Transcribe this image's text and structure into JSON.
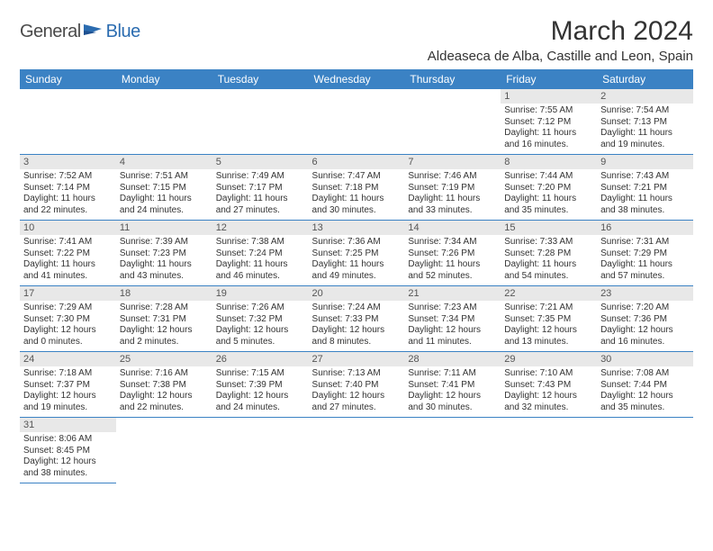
{
  "logo": {
    "general": "General",
    "blue": "Blue"
  },
  "title": "March 2024",
  "location": "Aldeaseca de Alba, Castille and Leon, Spain",
  "colors": {
    "header_bg": "#3b82c4",
    "header_text": "#ffffff",
    "daynum_bg": "#e8e8e8",
    "text": "#333333",
    "border": "#3b82c4",
    "logo_blue": "#2b6cb0",
    "logo_gray": "#4a4a4a"
  },
  "weekdays": [
    "Sunday",
    "Monday",
    "Tuesday",
    "Wednesday",
    "Thursday",
    "Friday",
    "Saturday"
  ],
  "weeks": [
    [
      null,
      null,
      null,
      null,
      null,
      {
        "d": "1",
        "sr": "Sunrise: 7:55 AM",
        "ss": "Sunset: 7:12 PM",
        "dl1": "Daylight: 11 hours",
        "dl2": "and 16 minutes."
      },
      {
        "d": "2",
        "sr": "Sunrise: 7:54 AM",
        "ss": "Sunset: 7:13 PM",
        "dl1": "Daylight: 11 hours",
        "dl2": "and 19 minutes."
      }
    ],
    [
      {
        "d": "3",
        "sr": "Sunrise: 7:52 AM",
        "ss": "Sunset: 7:14 PM",
        "dl1": "Daylight: 11 hours",
        "dl2": "and 22 minutes."
      },
      {
        "d": "4",
        "sr": "Sunrise: 7:51 AM",
        "ss": "Sunset: 7:15 PM",
        "dl1": "Daylight: 11 hours",
        "dl2": "and 24 minutes."
      },
      {
        "d": "5",
        "sr": "Sunrise: 7:49 AM",
        "ss": "Sunset: 7:17 PM",
        "dl1": "Daylight: 11 hours",
        "dl2": "and 27 minutes."
      },
      {
        "d": "6",
        "sr": "Sunrise: 7:47 AM",
        "ss": "Sunset: 7:18 PM",
        "dl1": "Daylight: 11 hours",
        "dl2": "and 30 minutes."
      },
      {
        "d": "7",
        "sr": "Sunrise: 7:46 AM",
        "ss": "Sunset: 7:19 PM",
        "dl1": "Daylight: 11 hours",
        "dl2": "and 33 minutes."
      },
      {
        "d": "8",
        "sr": "Sunrise: 7:44 AM",
        "ss": "Sunset: 7:20 PM",
        "dl1": "Daylight: 11 hours",
        "dl2": "and 35 minutes."
      },
      {
        "d": "9",
        "sr": "Sunrise: 7:43 AM",
        "ss": "Sunset: 7:21 PM",
        "dl1": "Daylight: 11 hours",
        "dl2": "and 38 minutes."
      }
    ],
    [
      {
        "d": "10",
        "sr": "Sunrise: 7:41 AM",
        "ss": "Sunset: 7:22 PM",
        "dl1": "Daylight: 11 hours",
        "dl2": "and 41 minutes."
      },
      {
        "d": "11",
        "sr": "Sunrise: 7:39 AM",
        "ss": "Sunset: 7:23 PM",
        "dl1": "Daylight: 11 hours",
        "dl2": "and 43 minutes."
      },
      {
        "d": "12",
        "sr": "Sunrise: 7:38 AM",
        "ss": "Sunset: 7:24 PM",
        "dl1": "Daylight: 11 hours",
        "dl2": "and 46 minutes."
      },
      {
        "d": "13",
        "sr": "Sunrise: 7:36 AM",
        "ss": "Sunset: 7:25 PM",
        "dl1": "Daylight: 11 hours",
        "dl2": "and 49 minutes."
      },
      {
        "d": "14",
        "sr": "Sunrise: 7:34 AM",
        "ss": "Sunset: 7:26 PM",
        "dl1": "Daylight: 11 hours",
        "dl2": "and 52 minutes."
      },
      {
        "d": "15",
        "sr": "Sunrise: 7:33 AM",
        "ss": "Sunset: 7:28 PM",
        "dl1": "Daylight: 11 hours",
        "dl2": "and 54 minutes."
      },
      {
        "d": "16",
        "sr": "Sunrise: 7:31 AM",
        "ss": "Sunset: 7:29 PM",
        "dl1": "Daylight: 11 hours",
        "dl2": "and 57 minutes."
      }
    ],
    [
      {
        "d": "17",
        "sr": "Sunrise: 7:29 AM",
        "ss": "Sunset: 7:30 PM",
        "dl1": "Daylight: 12 hours",
        "dl2": "and 0 minutes."
      },
      {
        "d": "18",
        "sr": "Sunrise: 7:28 AM",
        "ss": "Sunset: 7:31 PM",
        "dl1": "Daylight: 12 hours",
        "dl2": "and 2 minutes."
      },
      {
        "d": "19",
        "sr": "Sunrise: 7:26 AM",
        "ss": "Sunset: 7:32 PM",
        "dl1": "Daylight: 12 hours",
        "dl2": "and 5 minutes."
      },
      {
        "d": "20",
        "sr": "Sunrise: 7:24 AM",
        "ss": "Sunset: 7:33 PM",
        "dl1": "Daylight: 12 hours",
        "dl2": "and 8 minutes."
      },
      {
        "d": "21",
        "sr": "Sunrise: 7:23 AM",
        "ss": "Sunset: 7:34 PM",
        "dl1": "Daylight: 12 hours",
        "dl2": "and 11 minutes."
      },
      {
        "d": "22",
        "sr": "Sunrise: 7:21 AM",
        "ss": "Sunset: 7:35 PM",
        "dl1": "Daylight: 12 hours",
        "dl2": "and 13 minutes."
      },
      {
        "d": "23",
        "sr": "Sunrise: 7:20 AM",
        "ss": "Sunset: 7:36 PM",
        "dl1": "Daylight: 12 hours",
        "dl2": "and 16 minutes."
      }
    ],
    [
      {
        "d": "24",
        "sr": "Sunrise: 7:18 AM",
        "ss": "Sunset: 7:37 PM",
        "dl1": "Daylight: 12 hours",
        "dl2": "and 19 minutes."
      },
      {
        "d": "25",
        "sr": "Sunrise: 7:16 AM",
        "ss": "Sunset: 7:38 PM",
        "dl1": "Daylight: 12 hours",
        "dl2": "and 22 minutes."
      },
      {
        "d": "26",
        "sr": "Sunrise: 7:15 AM",
        "ss": "Sunset: 7:39 PM",
        "dl1": "Daylight: 12 hours",
        "dl2": "and 24 minutes."
      },
      {
        "d": "27",
        "sr": "Sunrise: 7:13 AM",
        "ss": "Sunset: 7:40 PM",
        "dl1": "Daylight: 12 hours",
        "dl2": "and 27 minutes."
      },
      {
        "d": "28",
        "sr": "Sunrise: 7:11 AM",
        "ss": "Sunset: 7:41 PM",
        "dl1": "Daylight: 12 hours",
        "dl2": "and 30 minutes."
      },
      {
        "d": "29",
        "sr": "Sunrise: 7:10 AM",
        "ss": "Sunset: 7:43 PM",
        "dl1": "Daylight: 12 hours",
        "dl2": "and 32 minutes."
      },
      {
        "d": "30",
        "sr": "Sunrise: 7:08 AM",
        "ss": "Sunset: 7:44 PM",
        "dl1": "Daylight: 12 hours",
        "dl2": "and 35 minutes."
      }
    ],
    [
      {
        "d": "31",
        "sr": "Sunrise: 8:06 AM",
        "ss": "Sunset: 8:45 PM",
        "dl1": "Daylight: 12 hours",
        "dl2": "and 38 minutes."
      },
      null,
      null,
      null,
      null,
      null,
      null
    ]
  ]
}
